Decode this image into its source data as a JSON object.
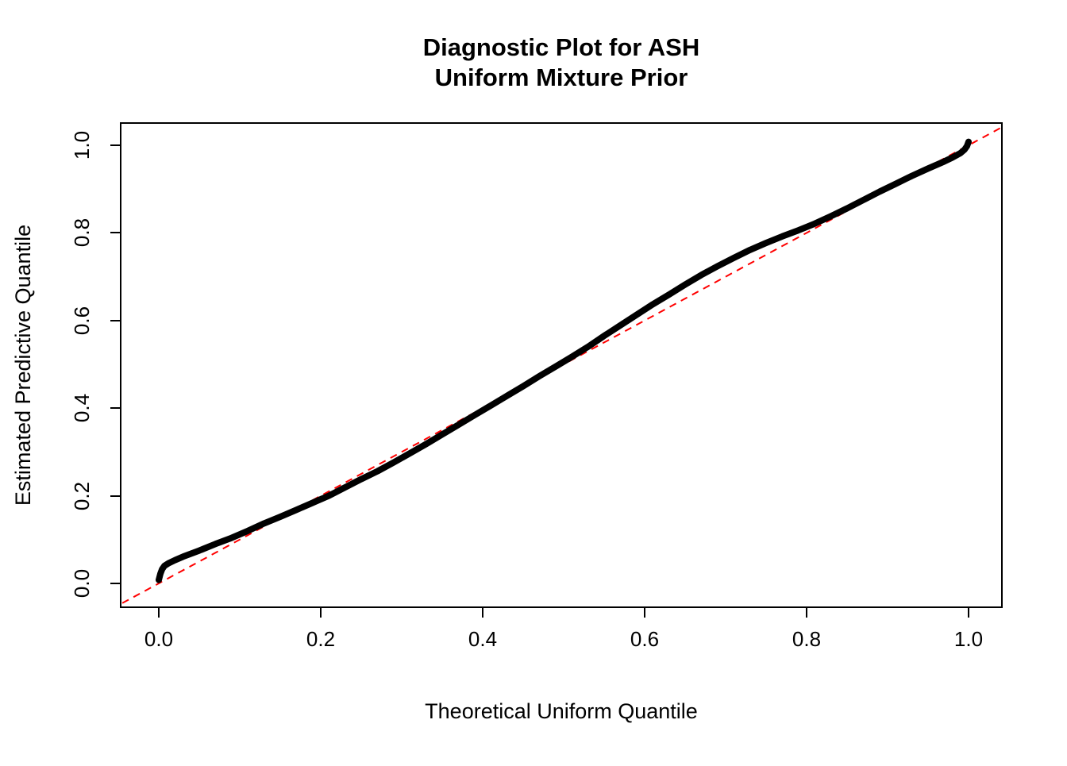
{
  "chart_data": {
    "type": "line",
    "title": "Diagnostic Plot for ASH\nUniform Mixture Prior",
    "title_line1": "Diagnostic Plot for ASH",
    "title_line2": "Uniform Mixture Prior",
    "xlabel": "Theoretical Uniform Quantile",
    "ylabel": "Estimated Predictive Quantile",
    "xlim": [
      -0.047,
      1.041
    ],
    "ylim": [
      -0.054,
      1.051
    ],
    "xticks": [
      0.0,
      0.2,
      0.4,
      0.6,
      0.8,
      1.0
    ],
    "yticks": [
      0.0,
      0.2,
      0.4,
      0.6,
      0.8,
      1.0
    ],
    "xtick_labels": [
      "0.0",
      "0.2",
      "0.4",
      "0.6",
      "0.8",
      "1.0"
    ],
    "ytick_labels": [
      "0.0",
      "0.2",
      "0.4",
      "0.6",
      "0.8",
      "1.0"
    ],
    "grid": false,
    "legend": "none",
    "series": [
      {
        "name": "estimated-predictive-quantile-curve",
        "color": "#000000",
        "style": "solid",
        "width": 8,
        "points": [
          [
            0.0,
            0.008
          ],
          [
            0.002,
            0.022
          ],
          [
            0.004,
            0.032
          ],
          [
            0.007,
            0.04
          ],
          [
            0.012,
            0.046
          ],
          [
            0.02,
            0.053
          ],
          [
            0.03,
            0.061
          ],
          [
            0.05,
            0.075
          ],
          [
            0.07,
            0.09
          ],
          [
            0.09,
            0.104
          ],
          [
            0.11,
            0.12
          ],
          [
            0.13,
            0.137
          ],
          [
            0.15,
            0.152
          ],
          [
            0.17,
            0.168
          ],
          [
            0.19,
            0.184
          ],
          [
            0.21,
            0.2
          ],
          [
            0.23,
            0.219
          ],
          [
            0.25,
            0.238
          ],
          [
            0.27,
            0.256
          ],
          [
            0.29,
            0.276
          ],
          [
            0.31,
            0.297
          ],
          [
            0.33,
            0.318
          ],
          [
            0.35,
            0.34
          ],
          [
            0.37,
            0.362
          ],
          [
            0.39,
            0.384
          ],
          [
            0.41,
            0.406
          ],
          [
            0.43,
            0.428
          ],
          [
            0.45,
            0.45
          ],
          [
            0.47,
            0.473
          ],
          [
            0.49,
            0.495
          ],
          [
            0.51,
            0.517
          ],
          [
            0.53,
            0.54
          ],
          [
            0.55,
            0.565
          ],
          [
            0.57,
            0.589
          ],
          [
            0.59,
            0.613
          ],
          [
            0.61,
            0.637
          ],
          [
            0.63,
            0.659
          ],
          [
            0.65,
            0.682
          ],
          [
            0.67,
            0.704
          ],
          [
            0.69,
            0.724
          ],
          [
            0.71,
            0.743
          ],
          [
            0.73,
            0.761
          ],
          [
            0.75,
            0.777
          ],
          [
            0.77,
            0.792
          ],
          [
            0.79,
            0.806
          ],
          [
            0.81,
            0.821
          ],
          [
            0.83,
            0.838
          ],
          [
            0.85,
            0.856
          ],
          [
            0.87,
            0.875
          ],
          [
            0.89,
            0.894
          ],
          [
            0.91,
            0.912
          ],
          [
            0.93,
            0.93
          ],
          [
            0.95,
            0.947
          ],
          [
            0.97,
            0.963
          ],
          [
            0.98,
            0.972
          ],
          [
            0.99,
            0.982
          ],
          [
            0.995,
            0.99
          ],
          [
            0.998,
            0.998
          ],
          [
            1.0,
            1.008
          ]
        ]
      },
      {
        "name": "reference-diagonal",
        "color": "#FF0000",
        "style": "dashed",
        "width": 2,
        "points": [
          [
            -0.045,
            -0.045
          ],
          [
            1.04,
            1.04
          ]
        ]
      }
    ]
  },
  "colors": {
    "curve": "#000000",
    "reference": "#FF0000",
    "axis": "#000000",
    "background": "#FFFFFF"
  }
}
